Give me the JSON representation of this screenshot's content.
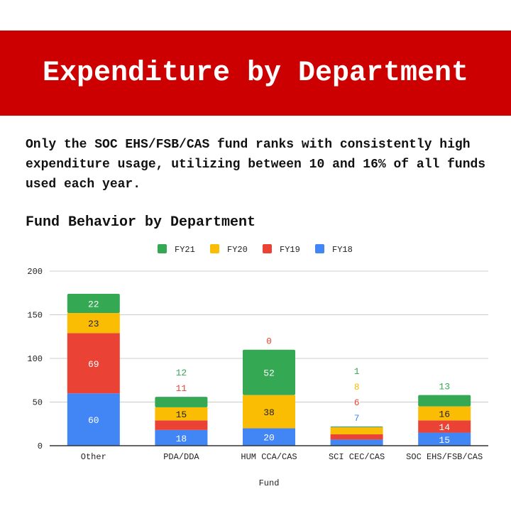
{
  "header": {
    "title": "Expenditure by Department"
  },
  "summary": "Only the SOC EHS/FSB/CAS fund ranks with consistently high expenditure usage, utilizing between 10 and 16% of all funds used each year.",
  "chart_data": {
    "type": "bar",
    "stacked": true,
    "title": "Fund Behavior by Department",
    "xlabel": "Fund",
    "ylabel": "",
    "ylim": [
      0,
      200
    ],
    "yticks": [
      0,
      50,
      100,
      150,
      200
    ],
    "grid": true,
    "legend_position": "top",
    "categories": [
      "Other",
      "PDA/DDA",
      "HUM CCA/CAS",
      "SCI CEC/CAS",
      "SOC EHS/FSB/CAS"
    ],
    "series": [
      {
        "name": "FY18",
        "color": "#4285f4",
        "values": [
          60,
          18,
          20,
          7,
          15
        ]
      },
      {
        "name": "FY19",
        "color": "#ea4335",
        "values": [
          69,
          11,
          0,
          6,
          14
        ]
      },
      {
        "name": "FY20",
        "color": "#fbbc04",
        "values": [
          23,
          15,
          38,
          8,
          16
        ]
      },
      {
        "name": "FY21",
        "color": "#34a853",
        "values": [
          22,
          12,
          52,
          1,
          13
        ]
      }
    ],
    "legend_order": [
      "FY21",
      "FY20",
      "FY19",
      "FY18"
    ]
  },
  "colors": {
    "banner": "#cc0000"
  }
}
